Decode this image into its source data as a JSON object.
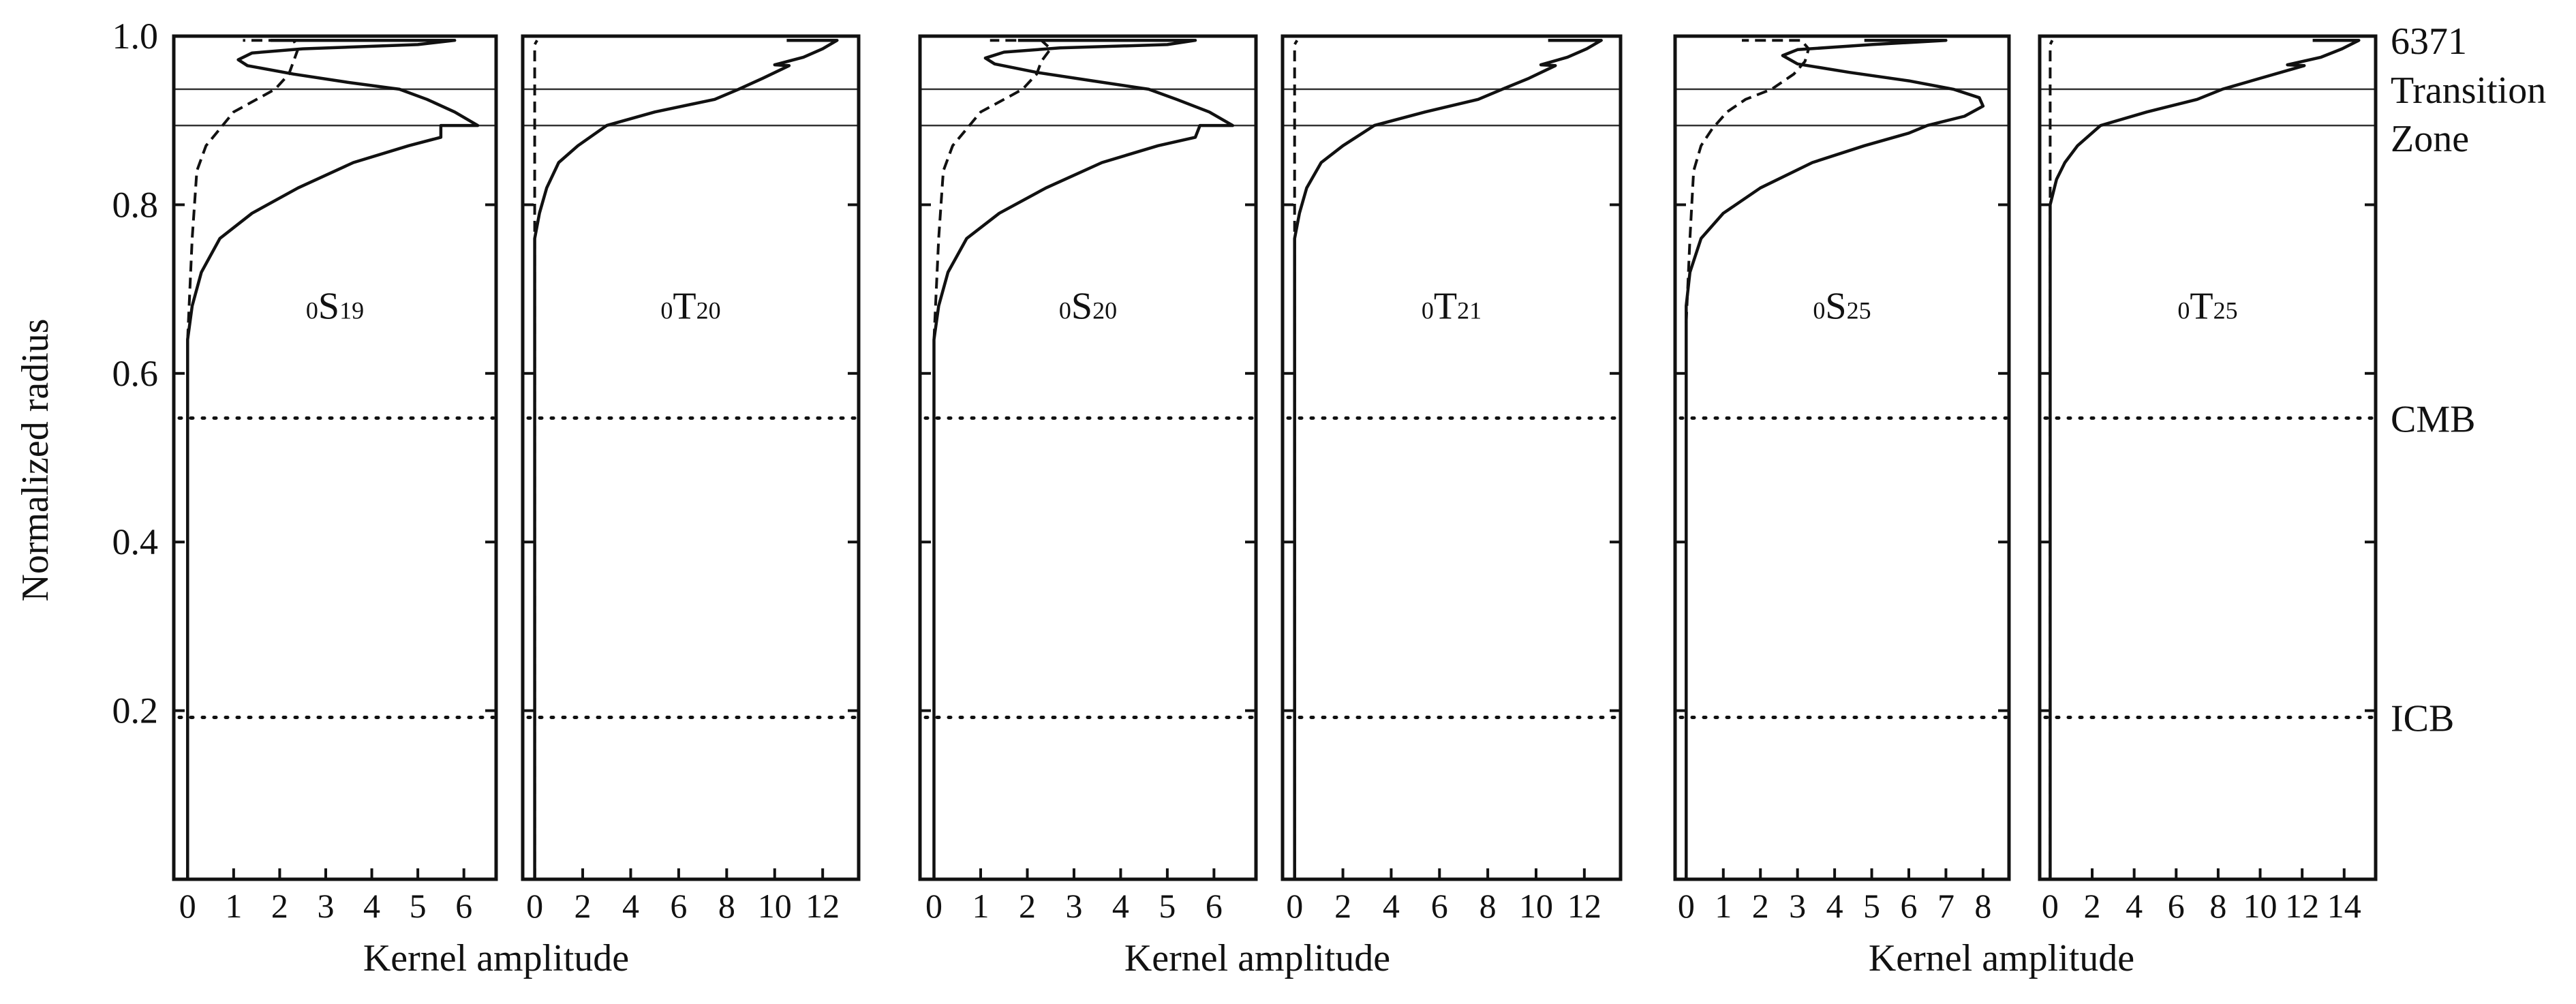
{
  "chart_data": {
    "type": "line",
    "ylabel": "Normalized radius",
    "xlabel": "Kernel amplitude",
    "ylim": [
      0,
      1.0
    ],
    "yticks": [
      "1.0",
      "0.8",
      "0.6",
      "0.4",
      "0.2"
    ],
    "boundaries": [
      {
        "label": "6371",
        "radius": 0.995
      },
      {
        "label": "Transition",
        "radius": 0.937
      },
      {
        "label": "Zone",
        "radius": 0.894
      },
      {
        "label": "CMB",
        "radius": 0.547
      },
      {
        "label": "ICB",
        "radius": 0.192
      }
    ],
    "panels": [
      {
        "mode": {
          "n": "0",
          "type": "S",
          "l": "19"
        },
        "xlim": [
          -0.3,
          6.7
        ],
        "xticks": [
          "0",
          "1",
          "2",
          "3",
          "4",
          "5",
          "6"
        ],
        "series": [
          {
            "style": "solid",
            "points": [
              [
                0,
                0
              ],
              [
                0,
                0.64
              ],
              [
                0.1,
                0.68
              ],
              [
                0.3,
                0.72
              ],
              [
                0.7,
                0.76
              ],
              [
                1.4,
                0.79
              ],
              [
                2.4,
                0.82
              ],
              [
                3.6,
                0.85
              ],
              [
                4.8,
                0.87
              ],
              [
                5.5,
                0.88
              ],
              [
                5.5,
                0.894
              ],
              [
                6.3,
                0.894
              ],
              [
                5.8,
                0.91
              ],
              [
                5.2,
                0.925
              ],
              [
                4.6,
                0.937
              ],
              [
                3.5,
                0.945
              ],
              [
                2.3,
                0.955
              ],
              [
                1.3,
                0.965
              ],
              [
                1.1,
                0.972
              ],
              [
                1.4,
                0.98
              ],
              [
                2.5,
                0.985
              ],
              [
                5.0,
                0.99
              ],
              [
                5.8,
                0.995
              ],
              [
                1.8,
                0.995
              ]
            ]
          },
          {
            "style": "dashed",
            "points": [
              [
                0,
                0.64
              ],
              [
                0.1,
                0.76
              ],
              [
                0.2,
                0.84
              ],
              [
                0.4,
                0.87
              ],
              [
                0.7,
                0.89
              ],
              [
                1.0,
                0.91
              ],
              [
                1.5,
                0.925
              ],
              [
                1.9,
                0.937
              ],
              [
                2.2,
                0.955
              ],
              [
                2.3,
                0.97
              ],
              [
                2.4,
                0.985
              ],
              [
                2.3,
                0.995
              ],
              [
                1.2,
                0.995
              ]
            ]
          }
        ]
      },
      {
        "mode": {
          "n": "0",
          "type": "T",
          "l": "20"
        },
        "xlim": [
          -0.5,
          13.5
        ],
        "xticks": [
          "0",
          "2",
          "4",
          "6",
          "8",
          "10",
          "12"
        ],
        "series": [
          {
            "style": "solid",
            "points": [
              [
                0,
                0
              ],
              [
                0,
                0.76
              ],
              [
                0.2,
                0.79
              ],
              [
                0.5,
                0.82
              ],
              [
                1.0,
                0.85
              ],
              [
                1.8,
                0.87
              ],
              [
                3.0,
                0.894
              ],
              [
                5.0,
                0.91
              ],
              [
                7.5,
                0.925
              ],
              [
                8.5,
                0.937
              ],
              [
                9.5,
                0.95
              ],
              [
                10.6,
                0.965
              ],
              [
                10.0,
                0.966
              ],
              [
                11.2,
                0.975
              ],
              [
                12.0,
                0.985
              ],
              [
                12.6,
                0.995
              ],
              [
                10.5,
                0.995
              ]
            ]
          },
          {
            "style": "dashed",
            "points": [
              [
                0,
                0
              ],
              [
                0,
                0.6
              ],
              [
                0,
                0.99
              ],
              [
                0.1,
                0.995
              ]
            ]
          }
        ]
      },
      {
        "mode": {
          "n": "0",
          "type": "S",
          "l": "20"
        },
        "xlim": [
          -0.3,
          6.9
        ],
        "xticks": [
          "0",
          "1",
          "2",
          "3",
          "4",
          "5",
          "6"
        ],
        "series": [
          {
            "style": "solid",
            "points": [
              [
                0,
                0
              ],
              [
                0,
                0.64
              ],
              [
                0.1,
                0.68
              ],
              [
                0.3,
                0.72
              ],
              [
                0.7,
                0.76
              ],
              [
                1.4,
                0.79
              ],
              [
                2.4,
                0.82
              ],
              [
                3.6,
                0.85
              ],
              [
                4.8,
                0.87
              ],
              [
                5.6,
                0.88
              ],
              [
                5.7,
                0.894
              ],
              [
                6.4,
                0.894
              ],
              [
                5.9,
                0.91
              ],
              [
                5.2,
                0.925
              ],
              [
                4.6,
                0.937
              ],
              [
                3.4,
                0.947
              ],
              [
                2.2,
                0.957
              ],
              [
                1.3,
                0.967
              ],
              [
                1.1,
                0.974
              ],
              [
                1.5,
                0.981
              ],
              [
                2.7,
                0.986
              ],
              [
                5.0,
                0.99
              ],
              [
                5.6,
                0.995
              ],
              [
                1.8,
                0.995
              ]
            ]
          },
          {
            "style": "dashed",
            "points": [
              [
                0,
                0.64
              ],
              [
                0.1,
                0.76
              ],
              [
                0.2,
                0.84
              ],
              [
                0.4,
                0.87
              ],
              [
                0.7,
                0.89
              ],
              [
                1.0,
                0.91
              ],
              [
                1.5,
                0.925
              ],
              [
                1.9,
                0.937
              ],
              [
                2.2,
                0.955
              ],
              [
                2.3,
                0.97
              ],
              [
                2.5,
                0.985
              ],
              [
                2.3,
                0.995
              ],
              [
                1.2,
                0.995
              ]
            ]
          }
        ]
      },
      {
        "mode": {
          "n": "0",
          "type": "T",
          "l": "21"
        },
        "xlim": [
          -0.5,
          13.5
        ],
        "xticks": [
          "0",
          "2",
          "4",
          "6",
          "8",
          "10",
          "12"
        ],
        "series": [
          {
            "style": "solid",
            "points": [
              [
                0,
                0
              ],
              [
                0,
                0.76
              ],
              [
                0.2,
                0.79
              ],
              [
                0.5,
                0.82
              ],
              [
                1.1,
                0.85
              ],
              [
                2.0,
                0.87
              ],
              [
                3.3,
                0.894
              ],
              [
                5.4,
                0.91
              ],
              [
                7.6,
                0.925
              ],
              [
                8.6,
                0.937
              ],
              [
                9.7,
                0.95
              ],
              [
                10.8,
                0.965
              ],
              [
                10.2,
                0.966
              ],
              [
                11.3,
                0.975
              ],
              [
                12.1,
                0.985
              ],
              [
                12.7,
                0.995
              ],
              [
                10.5,
                0.995
              ]
            ]
          },
          {
            "style": "dashed",
            "points": [
              [
                0,
                0
              ],
              [
                0,
                0.6
              ],
              [
                0,
                0.99
              ],
              [
                0.1,
                0.995
              ]
            ]
          }
        ]
      },
      {
        "mode": {
          "n": "0",
          "type": "S",
          "l": "25"
        },
        "xlim": [
          -0.3,
          8.7
        ],
        "xticks": [
          "0",
          "1",
          "2",
          "3",
          "4",
          "5",
          "6",
          "7",
          "8"
        ],
        "series": [
          {
            "style": "solid",
            "points": [
              [
                0,
                0
              ],
              [
                0,
                0.68
              ],
              [
                0.1,
                0.72
              ],
              [
                0.4,
                0.76
              ],
              [
                1.0,
                0.79
              ],
              [
                2.0,
                0.82
              ],
              [
                3.4,
                0.85
              ],
              [
                4.8,
                0.87
              ],
              [
                6.0,
                0.885
              ],
              [
                6.5,
                0.894
              ],
              [
                7.5,
                0.905
              ],
              [
                8.0,
                0.917
              ],
              [
                7.9,
                0.927
              ],
              [
                7.2,
                0.937
              ],
              [
                6.0,
                0.947
              ],
              [
                4.4,
                0.957
              ],
              [
                3.0,
                0.967
              ],
              [
                2.6,
                0.977
              ],
              [
                3.0,
                0.984
              ],
              [
                5.0,
                0.99
              ],
              [
                7.0,
                0.995
              ],
              [
                4.8,
                0.995
              ]
            ]
          },
          {
            "style": "dashed",
            "points": [
              [
                0,
                0.66
              ],
              [
                0.1,
                0.76
              ],
              [
                0.2,
                0.84
              ],
              [
                0.4,
                0.87
              ],
              [
                0.7,
                0.89
              ],
              [
                1.1,
                0.91
              ],
              [
                1.6,
                0.925
              ],
              [
                2.3,
                0.937
              ],
              [
                2.9,
                0.955
              ],
              [
                3.2,
                0.97
              ],
              [
                3.3,
                0.985
              ],
              [
                3.1,
                0.995
              ],
              [
                1.5,
                0.995
              ]
            ]
          }
        ]
      },
      {
        "mode": {
          "n": "0",
          "type": "T",
          "l": "25"
        },
        "xlim": [
          -0.5,
          15.5
        ],
        "xticks": [
          "0",
          "2",
          "4",
          "6",
          "8",
          "10",
          "12",
          "14"
        ],
        "series": [
          {
            "style": "solid",
            "points": [
              [
                0,
                0
              ],
              [
                0,
                0.8
              ],
              [
                0.3,
                0.83
              ],
              [
                0.7,
                0.85
              ],
              [
                1.3,
                0.87
              ],
              [
                2.4,
                0.894
              ],
              [
                4.6,
                0.91
              ],
              [
                7.0,
                0.925
              ],
              [
                8.2,
                0.937
              ],
              [
                10.0,
                0.95
              ],
              [
                12.1,
                0.965
              ],
              [
                11.3,
                0.966
              ],
              [
                12.9,
                0.975
              ],
              [
                13.9,
                0.985
              ],
              [
                14.7,
                0.995
              ],
              [
                12.5,
                0.995
              ]
            ]
          },
          {
            "style": "dashed",
            "points": [
              [
                0,
                0
              ],
              [
                0,
                0.6
              ],
              [
                0,
                0.99
              ],
              [
                0.1,
                0.995
              ]
            ]
          }
        ]
      }
    ]
  }
}
